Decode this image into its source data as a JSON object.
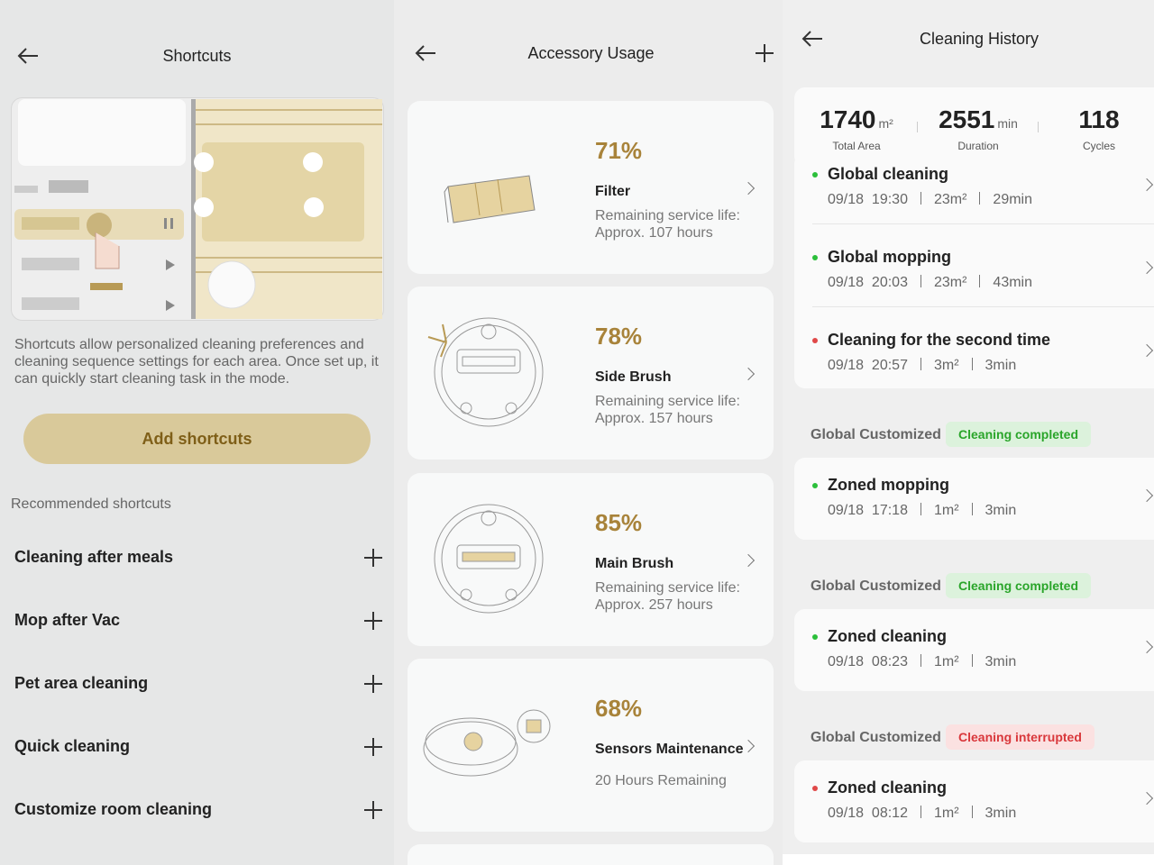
{
  "shortcuts": {
    "title": "Shortcuts",
    "description": "Shortcuts allow personalized cleaning preferences and cleaning sequence settings for each area. Once set up, it can quickly start cleaning task in the mode.",
    "add_button": "Add shortcuts",
    "recommended_title": "Recommended shortcuts",
    "items": [
      "Cleaning after meals",
      "Mop after Vac",
      "Pet area cleaning",
      "Quick cleaning",
      "Customize room cleaning"
    ]
  },
  "accessory_usage": {
    "title": "Accessory Usage",
    "items": [
      {
        "percent": "71%",
        "name": "Filter",
        "detail": [
          "Remaining service life:",
          "Approx. 107 hours"
        ]
      },
      {
        "percent": "78%",
        "name": "Side Brush",
        "detail": [
          "Remaining service life:",
          "Approx. 157 hours"
        ]
      },
      {
        "percent": "85%",
        "name": "Main Brush",
        "detail": [
          "Remaining service life:",
          "Approx. 257 hours"
        ]
      },
      {
        "percent": "68%",
        "name": "Sensors Maintenance",
        "detail": [
          "20 Hours Remaining"
        ]
      }
    ]
  },
  "cleaning_history": {
    "title": "Cleaning History",
    "summary": [
      {
        "value": "1740",
        "unit": "m²",
        "label": "Total Area"
      },
      {
        "value": "2551",
        "unit": "min",
        "label": "Duration"
      },
      {
        "value": "118",
        "label": "Cycles"
      }
    ],
    "records": [
      {
        "title": "Global cleaning",
        "dot": "#2bbf3a",
        "date": "09/18  19:30",
        "area": "23m²",
        "duration": "29min"
      },
      {
        "title": "Global mopping",
        "dot": "#2bbf3a",
        "date": "09/18  20:03",
        "area": "23m²",
        "duration": "43min"
      },
      {
        "title": "Cleaning for the second time",
        "dot": "#e04848",
        "date": "09/18  20:57",
        "area": "3m²",
        "duration": "3min"
      }
    ],
    "groups": [
      {
        "label": "Global Customized",
        "status": "Cleaning completed",
        "status_color": "#2aa52a",
        "status_bg": "#dcf2dc",
        "record": {
          "title": "Zoned mopping",
          "dot": "#2bbf3a",
          "date": "09/18  17:18",
          "area": "1m²",
          "duration": "3min"
        }
      },
      {
        "label": "Global Customized",
        "status": "Cleaning completed",
        "status_color": "#2aa52a",
        "status_bg": "#dcf2dc",
        "record": {
          "title": "Zoned cleaning",
          "dot": "#2bbf3a",
          "date": "09/18  08:23",
          "area": "1m²",
          "duration": "3min"
        }
      },
      {
        "label": "Global Customized",
        "status": "Cleaning interrupted",
        "status_color": "#d9373b",
        "status_bg": "#fbe1e1",
        "record": {
          "title": "Zoned cleaning",
          "dot": "#e04848",
          "date": "09/18  08:12",
          "area": "1m²",
          "duration": "3min"
        }
      }
    ]
  }
}
